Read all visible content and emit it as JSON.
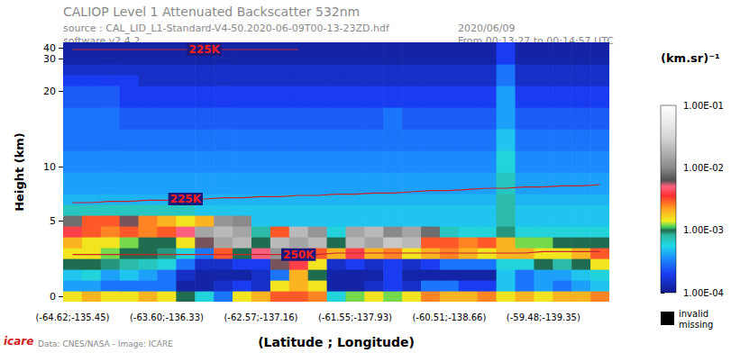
{
  "chart_data": {
    "type": "heatmap",
    "title": "CALIOP Level 1 Attenuated Backscatter 532nm",
    "annotations": [
      "source : CAL_LID_L1-Standard-V4-50.2020-06-09T00-13-23ZD.hdf",
      "software v2.4.2",
      "2020/06/09",
      "From 00:13:27 to 00:14:57 UTC",
      "Data: CNES/NASA - Image: ICARE",
      "icare"
    ],
    "x_label": "(Latitude ; Longitude)",
    "y_label": "Height (km)",
    "categories": [
      "(-64.62;-135.45)",
      null,
      null,
      null,
      null,
      "(-63.60;-136.33)",
      null,
      null,
      null,
      null,
      "(-62.57;-137.16)",
      null,
      null,
      null,
      null,
      "(-61.55;-137.93)",
      null,
      null,
      null,
      null,
      "(-60.51;-138.66)",
      null,
      null,
      null,
      null,
      "(-59.48;-139.35)",
      null,
      null,
      null
    ],
    "y_categories": [
      "0",
      null,
      null,
      null,
      null,
      null,
      null,
      "5",
      null,
      null,
      null,
      null,
      "10",
      null,
      null,
      null,
      null,
      null,
      null,
      "20",
      null,
      null,
      "30",
      "40"
    ],
    "row_heights": [
      0,
      0.7,
      1.4,
      2.1,
      2.8,
      3.5,
      4.3,
      5,
      5.9,
      6.8,
      7.7,
      8.6,
      9.5,
      10.6,
      12,
      13.4,
      14.9,
      16.3,
      17.7,
      19.2,
      21.7,
      25,
      30,
      36
    ],
    "cells": [
      [
        0.0015,
        0.002,
        0.0015,
        0.0015,
        0.002,
        0.0015,
        0.001,
        0.0006,
        0.0003,
        0.0015,
        0.002,
        0.003,
        0.003,
        0.0025,
        0.0006,
        0.0012,
        0.0015,
        0.0012,
        0.0015,
        0.0025,
        0.002,
        0.002,
        0.0025,
        0.0015,
        0.002,
        0.0015,
        0.002,
        0.002,
        0.0025
      ],
      [
        0.0004,
        0.0004,
        0.0003,
        0.0003,
        0.0003,
        0.0003,
        0.00012,
        0.00012,
        0.00015,
        0.0002,
        0.00015,
        0.0015,
        0.002,
        0.0015,
        0.00012,
        0.00012,
        0.00015,
        0.0002,
        0.00015,
        0.0003,
        0.0003,
        0.0002,
        0.0002,
        0.0005,
        0.0003,
        0.0004,
        0.0003,
        0.0004,
        0.0005
      ],
      [
        0.0005,
        0.0006,
        0.0004,
        0.0005,
        0.0004,
        0.0003,
        0.00015,
        0.00012,
        0.00012,
        0.00012,
        0.00015,
        0.0003,
        0.002,
        0.001,
        0.00012,
        0.00012,
        0.00012,
        0.0002,
        0.00012,
        0.00012,
        0.00012,
        0.00012,
        0.00012,
        0.0005,
        0.0003,
        0.0004,
        0.0004,
        0.0005,
        0.0006
      ],
      [
        0.001,
        0.001,
        0.0009,
        0.0008,
        0.0007,
        0.0006,
        0.0003,
        0.00015,
        0.00015,
        0.0002,
        0.0002,
        0.006,
        0.004,
        0.0015,
        0.00015,
        0.0002,
        0.00015,
        0.0002,
        0.00015,
        0.0002,
        0.0003,
        0.0003,
        0.0003,
        0.0006,
        0.0006,
        0.001,
        0.0008,
        0.001,
        0.0015
      ],
      [
        0.0015,
        0.0015,
        0.0012,
        0.001,
        0.001,
        0.0009,
        0.0006,
        0.0003,
        0.003,
        0.001,
        0.005,
        0.012,
        0.02,
        0.003,
        0.002,
        0.004,
        0.002,
        0.0025,
        0.0015,
        0.002,
        0.0025,
        0.002,
        0.0015,
        0.002,
        0.002,
        0.0015,
        0.0015,
        0.002,
        0.003
      ],
      [
        0.002,
        0.0015,
        0.0015,
        0.0012,
        0.001,
        0.001,
        0.0015,
        0.006,
        0.015,
        0.02,
        0.001,
        0.02,
        0.015,
        0.02,
        0.001,
        0.02,
        0.015,
        0.025,
        0.02,
        0.003,
        0.003,
        0.0025,
        0.003,
        0.002,
        0.0012,
        0.0012,
        0.001,
        0.001,
        0.001
      ],
      [
        0.004,
        0.003,
        0.0025,
        0.003,
        0.0025,
        0.003,
        0.005,
        0.015,
        0.02,
        0.015,
        0.0008,
        0.003,
        0.02,
        0.012,
        0.0006,
        0.015,
        0.02,
        0.01,
        0.015,
        0.008,
        0.0007,
        0.0006,
        0.0006,
        0.0009,
        0.0006,
        0.0006,
        0.0006,
        0.0006,
        0.0006
      ],
      [
        0.008,
        0.003,
        0.003,
        0.006,
        0.0025,
        0.002,
        0.0015,
        0.002,
        0.012,
        0.01,
        0.0005,
        0.0005,
        0.0005,
        0.0005,
        0.0005,
        0.0005,
        0.0005,
        0.0005,
        0.0005,
        0.0005,
        0.0005,
        0.0005,
        0.0005,
        0.0008,
        0.0005,
        0.0005,
        0.0005,
        0.0005,
        0.0005
      ],
      [
        0.0007,
        0.0007,
        0.0007,
        0.0007,
        0.0007,
        0.0007,
        0.0007,
        0.0005,
        0.0005,
        0.0005,
        0.0005,
        0.0005,
        0.0005,
        0.0005,
        0.0005,
        0.0005,
        0.0005,
        0.0005,
        0.0005,
        0.0005,
        0.0005,
        0.0005,
        0.0005,
        0.0008,
        0.0005,
        0.0005,
        0.0005,
        0.0005,
        0.0005
      ],
      [
        0.00045,
        0.00045,
        0.00045,
        0.00045,
        0.00045,
        0.00045,
        0.00045,
        0.00045,
        0.00045,
        0.00045,
        0.00045,
        0.00045,
        0.00045,
        0.00045,
        0.00045,
        0.00045,
        0.00045,
        0.00045,
        0.00045,
        0.00045,
        0.00045,
        0.00045,
        0.00045,
        0.0008,
        0.00045,
        0.00045,
        0.00045,
        0.00045,
        0.00045
      ],
      [
        0.0004,
        0.0004,
        0.0004,
        0.0004,
        0.0004,
        0.0004,
        0.0004,
        0.0004,
        0.0004,
        0.0004,
        0.0004,
        0.0004,
        0.0004,
        0.0004,
        0.0004,
        0.0004,
        0.0004,
        0.0004,
        0.0004,
        0.0004,
        0.0004,
        0.0004,
        0.0004,
        0.0007,
        0.0004,
        0.0004,
        0.0004,
        0.0004,
        0.0004
      ],
      [
        0.0004,
        0.0004,
        0.0004,
        0.0004,
        0.0004,
        0.0004,
        0.0004,
        0.0004,
        0.0004,
        0.0004,
        0.0004,
        0.0004,
        0.0004,
        0.0004,
        0.0004,
        0.0004,
        0.0004,
        0.0004,
        0.0004,
        0.0004,
        0.0004,
        0.0004,
        0.0004,
        0.0007,
        0.0004,
        0.0004,
        0.0004,
        0.0004,
        0.0004
      ],
      [
        0.00035,
        0.00035,
        0.00035,
        0.00035,
        0.00035,
        0.00035,
        0.00035,
        0.00035,
        0.00035,
        0.00035,
        0.00035,
        0.00035,
        0.00035,
        0.00035,
        0.00035,
        0.00035,
        0.00035,
        0.00035,
        0.00035,
        0.00035,
        0.00035,
        0.00035,
        0.00035,
        0.0006,
        0.00035,
        0.00035,
        0.00035,
        0.00035,
        0.00035
      ],
      [
        0.00035,
        0.00035,
        0.00035,
        0.00035,
        0.00035,
        0.00035,
        0.00035,
        0.00035,
        0.00035,
        0.00035,
        0.00035,
        0.00035,
        0.00035,
        0.00035,
        0.00035,
        0.00035,
        0.00035,
        0.00035,
        0.00035,
        0.00035,
        0.00035,
        0.00035,
        0.00035,
        0.0006,
        0.00035,
        0.00035,
        0.00035,
        0.00035,
        0.00035
      ],
      [
        0.0003,
        0.0003,
        0.0003,
        0.0003,
        0.0003,
        0.0003,
        0.0003,
        0.0003,
        0.0003,
        0.0003,
        0.0003,
        0.0003,
        0.0003,
        0.0003,
        0.0003,
        0.0003,
        0.0003,
        0.0003,
        0.0003,
        0.0003,
        0.0003,
        0.0003,
        0.0003,
        0.0005,
        0.0003,
        0.0003,
        0.0003,
        0.0003,
        0.0003
      ],
      [
        0.0003,
        0.0003,
        0.0003,
        0.0003,
        0.0003,
        0.0003,
        0.0003,
        0.0003,
        0.0003,
        0.0003,
        0.0003,
        0.0003,
        0.0003,
        0.0003,
        0.0003,
        0.0003,
        0.0003,
        0.0003,
        0.0003,
        0.0003,
        0.0003,
        0.0003,
        0.0003,
        0.0005,
        0.0003,
        0.0003,
        0.0003,
        0.0003,
        0.0003
      ],
      [
        0.0003,
        0.0003,
        0.0003,
        0.00025,
        0.00025,
        0.00025,
        0.00025,
        0.00025,
        0.00025,
        0.00025,
        0.00025,
        0.00025,
        0.00025,
        0.00025,
        0.00025,
        0.00025,
        0.00025,
        0.0003,
        0.00025,
        0.00025,
        0.00025,
        0.00025,
        0.00025,
        0.0004,
        0.00025,
        0.00025,
        0.00025,
        0.00025,
        0.00025
      ],
      [
        0.0003,
        0.0003,
        0.0003,
        0.00025,
        0.00025,
        0.00025,
        0.00025,
        0.00025,
        0.00025,
        0.00025,
        0.00025,
        0.00025,
        0.00025,
        0.00025,
        0.00025,
        0.00025,
        0.00025,
        0.0003,
        0.00025,
        0.00025,
        0.00025,
        0.00025,
        0.00025,
        0.0004,
        0.00025,
        0.00025,
        0.00025,
        0.00025,
        0.00025
      ],
      [
        0.00025,
        0.00025,
        0.00025,
        0.0002,
        0.0002,
        0.0002,
        0.0002,
        0.0002,
        0.0002,
        0.0002,
        0.0002,
        0.0002,
        0.0002,
        0.0002,
        0.0002,
        0.0002,
        0.0002,
        0.0002,
        0.0002,
        0.0002,
        0.0002,
        0.0002,
        0.0002,
        0.0004,
        0.0002,
        0.0002,
        0.0002,
        0.0002,
        0.0002
      ],
      [
        0.00025,
        0.00025,
        0.00025,
        0.0002,
        0.0002,
        0.0002,
        0.0002,
        0.0002,
        0.0002,
        0.0002,
        0.0002,
        0.0002,
        0.0002,
        0.0002,
        0.0002,
        0.0002,
        0.0002,
        0.0002,
        0.0002,
        0.0002,
        0.0002,
        0.0002,
        0.0002,
        0.0004,
        0.0002,
        0.0002,
        0.0002,
        0.0002,
        0.0002
      ],
      [
        0.0002,
        0.0002,
        0.0002,
        0.0002,
        0.00015,
        0.00015,
        0.00015,
        0.00015,
        0.00015,
        0.00015,
        0.00015,
        0.00015,
        0.00015,
        0.00015,
        0.00015,
        0.00015,
        0.00015,
        0.00015,
        0.00015,
        0.00015,
        0.00015,
        0.00015,
        0.00015,
        0.0003,
        0.00015,
        0.00015,
        0.00015,
        0.00015,
        0.00015
      ],
      [
        0.00015,
        0.00015,
        0.00015,
        0.00015,
        0.00015,
        0.00015,
        0.00015,
        0.00015,
        0.00015,
        0.00015,
        0.00015,
        0.00015,
        0.00015,
        0.00015,
        0.00015,
        0.00015,
        0.00015,
        0.00015,
        0.00015,
        0.00015,
        0.00015,
        0.00015,
        0.00015,
        0.0003,
        0.00015,
        0.00015,
        0.00015,
        0.00015,
        0.00015
      ],
      [
        0.00012,
        0.00012,
        0.00012,
        0.00012,
        0.00012,
        0.00012,
        0.00012,
        0.00012,
        0.00012,
        0.00012,
        0.00012,
        0.00012,
        0.00012,
        0.00012,
        0.00012,
        0.00012,
        0.00012,
        0.00012,
        0.00012,
        0.00012,
        0.00012,
        0.00012,
        0.00012,
        0.0002,
        0.00012,
        0.00012,
        0.00012,
        0.00012,
        0.00012
      ],
      [
        0.00012,
        0.00012,
        0.00012,
        0.00012,
        0.00012,
        0.00012,
        0.00012,
        0.00012,
        0.00012,
        0.00012,
        0.00012,
        0.00012,
        0.00012,
        0.00012,
        0.00012,
        0.00012,
        0.00012,
        0.00012,
        0.00012,
        0.00012,
        0.00012,
        0.00012,
        0.00012,
        0.0002,
        0.00012,
        0.00012,
        0.00012,
        0.00012,
        0.00012
      ]
    ],
    "contours": [
      {
        "label": "225K",
        "color": "#c8242a",
        "heights": [
          35,
          35,
          35,
          35,
          35,
          35,
          35,
          35,
          35,
          35,
          35,
          35,
          35,
          null,
          null,
          null,
          null,
          null,
          null,
          null,
          null,
          null,
          null,
          null,
          null,
          null,
          null,
          null,
          null
        ]
      },
      {
        "label": "225K",
        "color": "#c8242a",
        "heights": [
          6.5,
          6.5,
          6.6,
          6.6,
          6.7,
          6.7,
          6.8,
          6.8,
          6.9,
          6.9,
          7.0,
          7.0,
          7.1,
          7.1,
          7.2,
          7.2,
          7.3,
          7.3,
          7.4,
          7.5,
          7.5,
          7.6,
          7.7,
          7.7,
          7.8,
          7.8,
          7.9,
          7.9,
          8.0
        ]
      },
      {
        "label": "250K",
        "color": "#c8242a",
        "heights": [
          2.7,
          2.7,
          2.7,
          2.7,
          2.7,
          2.7,
          2.7,
          2.7,
          2.7,
          2.7,
          2.7,
          2.7,
          2.7,
          2.7,
          2.8,
          2.8,
          2.8,
          2.8,
          2.8,
          2.8,
          2.8,
          2.8,
          2.8,
          2.8,
          2.8,
          2.9,
          2.9,
          2.9,
          2.9
        ]
      }
    ],
    "colorbar": {
      "title": "(km.sr)⁻¹",
      "log": true,
      "range": [
        0.0001,
        0.1
      ],
      "ticks": [
        {
          "value": 0.0001,
          "label": "1.00E-04"
        },
        {
          "value": 0.001,
          "label": "1.00E-03"
        },
        {
          "value": 0.01,
          "label": "1.00E-02"
        },
        {
          "value": 0.1,
          "label": "1.00E-01"
        }
      ]
    },
    "missing": {
      "labels": [
        "invalid",
        "missing"
      ],
      "color": "#000000"
    }
  }
}
